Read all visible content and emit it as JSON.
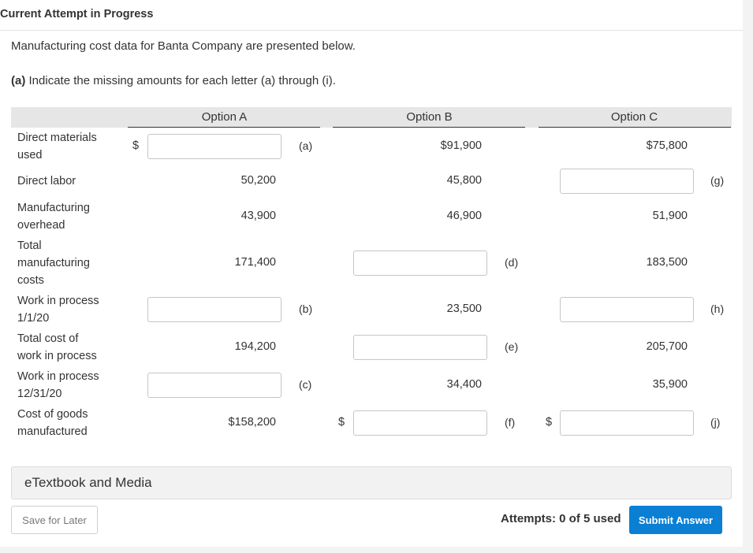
{
  "header": {
    "title": "Current Attempt in Progress"
  },
  "intro": "Manufacturing cost data for Banta Company are presented below.",
  "question": {
    "part": "(a)",
    "text": "Indicate the missing amounts for each letter (a) through (i)."
  },
  "columns": [
    "Option A",
    "Option B",
    "Option C"
  ],
  "rows": [
    {
      "label": [
        "Direct materials",
        "used"
      ],
      "a": {
        "input": "",
        "letter": "(a)",
        "dollar": "$"
      },
      "b": {
        "value": "$91,900"
      },
      "c": {
        "value": "$75,800"
      }
    },
    {
      "label": [
        "Direct labor"
      ],
      "a": {
        "value": "50,200"
      },
      "b": {
        "value": "45,800"
      },
      "c": {
        "input": "",
        "letter": "(g)"
      }
    },
    {
      "label": [
        "Manufacturing",
        "overhead"
      ],
      "a": {
        "value": "43,900"
      },
      "b": {
        "value": "46,900"
      },
      "c": {
        "value": "51,900"
      }
    },
    {
      "label": [
        "Total",
        "manufacturing",
        "costs"
      ],
      "a": {
        "value": "171,400"
      },
      "b": {
        "input": "",
        "letter": "(d)"
      },
      "c": {
        "value": "183,500"
      }
    },
    {
      "label": [
        "Work in process",
        "1/1/20"
      ],
      "a": {
        "input": "",
        "letter": "(b)"
      },
      "b": {
        "value": "23,500"
      },
      "c": {
        "input": "",
        "letter": "(h)"
      }
    },
    {
      "label": [
        "Total cost of",
        "work in process"
      ],
      "a": {
        "value": "194,200"
      },
      "b": {
        "input": "",
        "letter": "(e)"
      },
      "c": {
        "value": "205,700"
      }
    },
    {
      "label": [
        "Work in process",
        "12/31/20"
      ],
      "a": {
        "input": "",
        "letter": "(c)"
      },
      "b": {
        "value": "34,400"
      },
      "c": {
        "value": "35,900"
      }
    },
    {
      "label": [
        "Cost of goods",
        "manufactured"
      ],
      "a": {
        "value": "$158,200"
      },
      "b": {
        "input": "",
        "letter": "(f)",
        "dollar": "$"
      },
      "c": {
        "input": "",
        "letter": "(j)",
        "dollar": "$"
      }
    }
  ],
  "etextbook": "eTextbook and Media",
  "footer": {
    "save_label": "Save for Later",
    "attempts": "Attempts: 0 of 5 used",
    "submit_label": "Submit Answer"
  }
}
